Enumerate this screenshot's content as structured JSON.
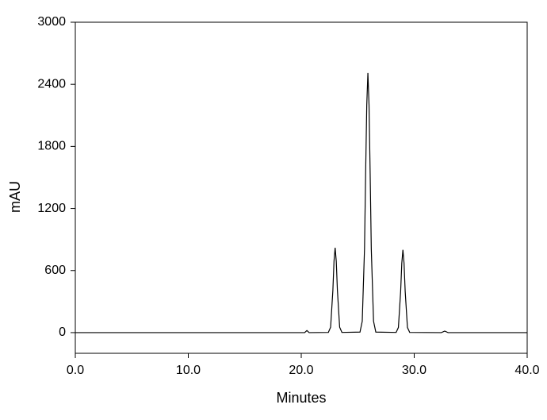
{
  "chart_data": {
    "type": "line",
    "x_label": "Minutes",
    "y_label": "mAU",
    "x": [
      0,
      20.3,
      20.5,
      20.7,
      22.4,
      22.6,
      22.8,
      22.9,
      23.0,
      23.1,
      23.2,
      23.4,
      23.6,
      25.2,
      25.4,
      25.6,
      25.7,
      25.8,
      25.9,
      26.0,
      26.1,
      26.2,
      26.4,
      26.6,
      28.4,
      28.6,
      28.8,
      28.9,
      29.0,
      29.1,
      29.2,
      29.4,
      29.6,
      32.4,
      32.7,
      33.0,
      40
    ],
    "series": [
      {
        "color": "#000000",
        "values": [
          0,
          0,
          20,
          0,
          2,
          52,
          410,
          690,
          820,
          690,
          410,
          52,
          2,
          5,
          110,
          810,
          1540,
          2200,
          2510,
          2200,
          1540,
          810,
          110,
          5,
          2,
          50,
          400,
          670,
          800,
          670,
          400,
          50,
          2,
          0,
          15,
          0,
          0
        ]
      }
    ],
    "xlim": [
      0,
      40
    ],
    "xticks": [
      {
        "value": 0,
        "label": "0.0"
      },
      {
        "value": 10,
        "label": "10.0"
      },
      {
        "value": 20,
        "label": "20.0"
      },
      {
        "value": 30,
        "label": "30.0"
      },
      {
        "value": 40,
        "label": "40.0"
      }
    ],
    "ylim": [
      -200,
      3000
    ],
    "yticks": [
      0,
      600,
      1200,
      1800,
      2400,
      3000
    ]
  }
}
